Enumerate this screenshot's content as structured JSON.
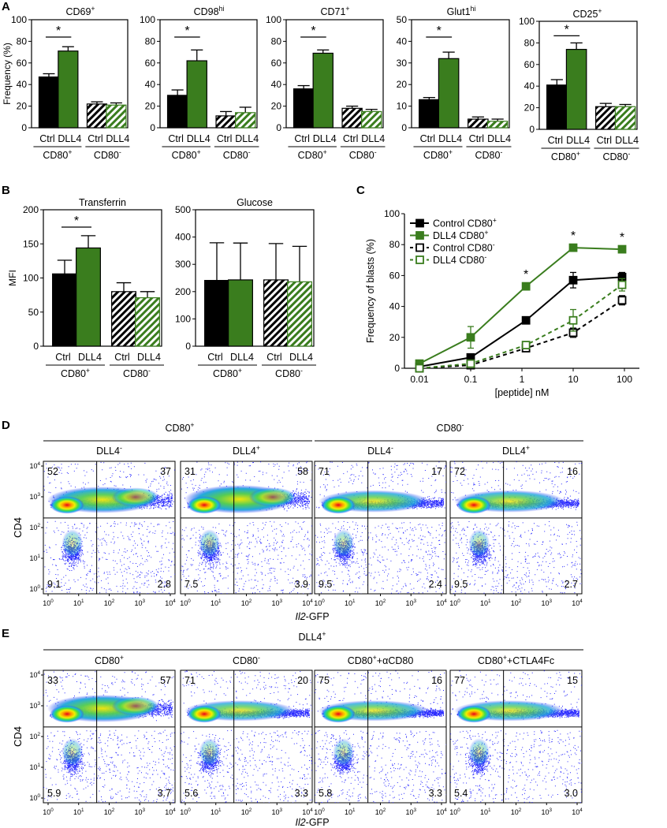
{
  "figure": {
    "panel_letters": [
      "A",
      "B",
      "C",
      "D",
      "E"
    ]
  },
  "colors": {
    "black": "#000000",
    "green": "#3a7d1e"
  },
  "chart_data": [
    {
      "id": "A1",
      "type": "bar",
      "panel": "A",
      "title": "CD69",
      "title_sup": "+",
      "ylabel": "Frequency (%)",
      "ylim": [
        0,
        100
      ],
      "yticks": [
        0,
        20,
        40,
        60,
        80,
        100
      ],
      "categories": [
        "Ctrl",
        "DLL4",
        "Ctrl",
        "DLL4"
      ],
      "groups": [
        {
          "label": "CD80",
          "sup": "+"
        },
        {
          "label": "CD80",
          "sup": "-"
        }
      ],
      "values": [
        47,
        71,
        22,
        21
      ],
      "errors": [
        3,
        4,
        2,
        2
      ],
      "significance": [
        {
          "between": [
            0,
            1
          ],
          "label": "*"
        }
      ]
    },
    {
      "id": "A2",
      "type": "bar",
      "panel": "A",
      "title": "CD98",
      "title_sup": "hi",
      "ylabel": "",
      "ylim": [
        0,
        100
      ],
      "yticks": [
        0,
        20,
        40,
        60,
        80,
        100
      ],
      "categories": [
        "Ctrl",
        "DLL4",
        "Ctrl",
        "DLL4"
      ],
      "groups": [
        {
          "label": "CD80",
          "sup": "+"
        },
        {
          "label": "CD80",
          "sup": "-"
        }
      ],
      "values": [
        30,
        62,
        11,
        14
      ],
      "errors": [
        5,
        10,
        4,
        5
      ],
      "significance": [
        {
          "between": [
            0,
            1
          ],
          "label": "*"
        }
      ]
    },
    {
      "id": "A3",
      "type": "bar",
      "panel": "A",
      "title": "CD71",
      "title_sup": "+",
      "ylabel": "",
      "ylim": [
        0,
        100
      ],
      "yticks": [
        0,
        20,
        40,
        60,
        80,
        100
      ],
      "categories": [
        "Ctrl",
        "DLL4",
        "Ctrl",
        "DLL4"
      ],
      "groups": [
        {
          "label": "CD80",
          "sup": "+"
        },
        {
          "label": "CD80",
          "sup": "-"
        }
      ],
      "values": [
        36,
        69,
        18,
        15
      ],
      "errors": [
        3,
        3,
        2,
        2
      ],
      "significance": [
        {
          "between": [
            0,
            1
          ],
          "label": "*"
        }
      ]
    },
    {
      "id": "A4",
      "type": "bar",
      "panel": "A",
      "title": "Glut1",
      "title_sup": "hi",
      "ylabel": "",
      "ylim": [
        0,
        50
      ],
      "yticks": [
        0,
        10,
        20,
        30,
        40,
        50
      ],
      "categories": [
        "Ctrl",
        "DLL4",
        "Ctrl",
        "DLL4"
      ],
      "groups": [
        {
          "label": "CD80",
          "sup": "+"
        },
        {
          "label": "CD80",
          "sup": "-"
        }
      ],
      "values": [
        13,
        32,
        4,
        3
      ],
      "errors": [
        1,
        3,
        1,
        1
      ],
      "significance": [
        {
          "between": [
            0,
            1
          ],
          "label": "*"
        }
      ]
    },
    {
      "id": "A5",
      "type": "bar",
      "panel": "A",
      "title": "CD25",
      "title_sup": "+",
      "ylabel": "",
      "ylim": [
        0,
        100
      ],
      "yticks": [
        0,
        20,
        40,
        60,
        80,
        100
      ],
      "categories": [
        "Ctrl",
        "DLL4",
        "Ctrl",
        "DLL4"
      ],
      "groups": [
        {
          "label": "CD80",
          "sup": "+"
        },
        {
          "label": "CD80",
          "sup": "-"
        }
      ],
      "values": [
        41,
        74,
        21,
        21
      ],
      "errors": [
        5,
        6,
        3,
        2
      ],
      "significance": [
        {
          "between": [
            0,
            1
          ],
          "label": "*"
        }
      ]
    },
    {
      "id": "B1",
      "type": "bar",
      "panel": "B",
      "title": "Transferrin",
      "title_sup": "",
      "ylabel": "MFI",
      "ylim": [
        0,
        200
      ],
      "yticks": [
        0,
        50,
        100,
        150,
        200
      ],
      "categories": [
        "Ctrl",
        "DLL4",
        "Ctrl",
        "DLL4"
      ],
      "groups": [
        {
          "label": "CD80",
          "sup": "+"
        },
        {
          "label": "CD80",
          "sup": "-"
        }
      ],
      "values": [
        106,
        144,
        80,
        71
      ],
      "errors": [
        20,
        18,
        13,
        9
      ],
      "significance": [
        {
          "between": [
            0,
            1
          ],
          "label": "*"
        }
      ]
    },
    {
      "id": "B2",
      "type": "bar",
      "panel": "B",
      "title": "Glucose",
      "title_sup": "",
      "ylabel": "",
      "ylim": [
        0,
        500
      ],
      "yticks": [
        0,
        100,
        200,
        300,
        400,
        500
      ],
      "categories": [
        "Ctrl",
        "DLL4",
        "Ctrl",
        "DLL4"
      ],
      "groups": [
        {
          "label": "CD80",
          "sup": "+"
        },
        {
          "label": "CD80",
          "sup": "-"
        }
      ],
      "values": [
        241,
        243,
        243,
        236
      ],
      "errors": [
        138,
        135,
        133,
        130
      ],
      "significance": []
    },
    {
      "id": "C",
      "type": "line",
      "panel": "C",
      "title": "",
      "xlabel": "[peptide] nM",
      "ylabel": "Frequency of blasts (%)",
      "xscale": "log",
      "xlim": [
        0.01,
        100
      ],
      "xticks": [
        0.01,
        0.1,
        1,
        10,
        100
      ],
      "xtick_labels": [
        "0.01",
        "0.1",
        "1",
        "10",
        "100"
      ],
      "ylim": [
        0,
        100
      ],
      "yticks": [
        0,
        20,
        40,
        60,
        80,
        100
      ],
      "x": [
        0.01,
        0.1,
        1.2,
        10,
        90
      ],
      "series": [
        {
          "name": "Control CD80",
          "sup": "+",
          "color": "#000000",
          "dashed": false,
          "filled": true,
          "values": [
            1,
            7,
            31,
            57,
            59
          ],
          "errors": [
            1,
            2,
            2,
            5,
            3
          ]
        },
        {
          "name": "DLL4 CD80",
          "sup": "+",
          "color": "#3a7d1e",
          "dashed": false,
          "filled": true,
          "values": [
            3,
            20,
            53,
            78,
            77
          ],
          "errors": [
            1,
            7,
            2,
            2,
            2
          ]
        },
        {
          "name": "Control CD80",
          "sup": "-",
          "color": "#000000",
          "dashed": true,
          "filled": false,
          "values": [
            0,
            2,
            13,
            23,
            44
          ],
          "errors": [
            1,
            1,
            2,
            3,
            3
          ]
        },
        {
          "name": "DLL4 CD80",
          "sup": "-",
          "color": "#3a7d1e",
          "dashed": true,
          "filled": false,
          "values": [
            0,
            3,
            15,
            31,
            54
          ],
          "errors": [
            1,
            1,
            2,
            7,
            4
          ]
        }
      ],
      "significance_at_x": [
        1.2,
        10,
        90
      ],
      "significance_label": "*"
    }
  ],
  "flow": {
    "panel_D": {
      "group_labels": [
        {
          "label": "CD80",
          "sup": "+"
        },
        {
          "label": "CD80",
          "sup": "-"
        }
      ],
      "ylabel": "CD4",
      "xlabel_italic": "Il2",
      "xlabel_rest": "-GFP",
      "plots": [
        {
          "title": "DLL4",
          "sup": "-",
          "q_ul": "52",
          "q_ur": "37",
          "q_ll": "9.1",
          "q_lr": "2.8"
        },
        {
          "title": "DLL4",
          "sup": "+",
          "q_ul": "31",
          "q_ur": "58",
          "q_ll": "7.5",
          "q_lr": "3.9"
        },
        {
          "title": "DLL4",
          "sup": "-",
          "q_ul": "71",
          "q_ur": "17",
          "q_ll": "9.5",
          "q_lr": "2.4"
        },
        {
          "title": "DLL4",
          "sup": "+",
          "q_ul": "72",
          "q_ur": "16",
          "q_ll": "9.5",
          "q_lr": "2.7"
        }
      ]
    },
    "panel_E": {
      "group_label": {
        "label": "DLL4",
        "sup": "+"
      },
      "ylabel": "CD4",
      "xlabel_italic": "Il2",
      "xlabel_rest": "-GFP",
      "plots": [
        {
          "title": "CD80",
          "sup": "+",
          "suffix": "",
          "q_ul": "33",
          "q_ur": "57",
          "q_ll": "5.9",
          "q_lr": "3.7"
        },
        {
          "title": "CD80",
          "sup": "-",
          "suffix": "",
          "q_ul": "71",
          "q_ur": "20",
          "q_ll": "5.6",
          "q_lr": "3.3"
        },
        {
          "title": "CD80",
          "sup": "+",
          "suffix": "+αCD80",
          "q_ul": "75",
          "q_ur": "16",
          "q_ll": "5.8",
          "q_lr": "3.3"
        },
        {
          "title": "CD80",
          "sup": "+",
          "suffix": "+CTLA4Fc",
          "q_ul": "77",
          "q_ur": "15",
          "q_ll": "5.4",
          "q_lr": "3.0"
        }
      ]
    },
    "axis_ticks": [
      "10",
      "10",
      "10",
      "10",
      "10"
    ],
    "axis_tick_exp": [
      "0",
      "1",
      "2",
      "3",
      "4"
    ]
  }
}
